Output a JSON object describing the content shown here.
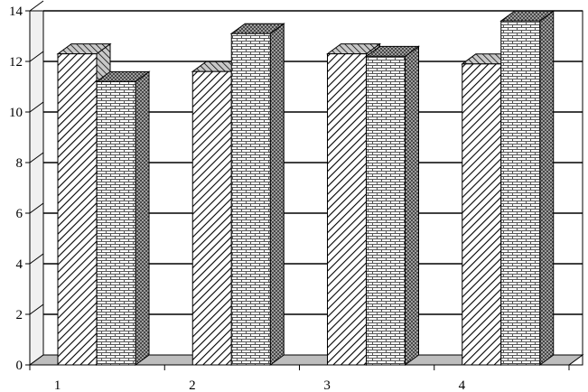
{
  "chart_data": {
    "type": "bar",
    "style": "3d-clustered-column",
    "categories": [
      "1",
      "2",
      "3",
      "4"
    ],
    "series": [
      {
        "values": [
          12.3,
          11.6,
          12.3,
          11.9
        ],
        "pattern": "diagonal-hatch"
      },
      {
        "values": [
          11.2,
          13.1,
          12.2,
          13.6
        ],
        "pattern": "brick"
      }
    ],
    "y_ticks": [
      "0",
      "2",
      "4",
      "6",
      "8",
      "10",
      "12",
      "14"
    ],
    "ylim": [
      0,
      14
    ],
    "grid": true,
    "legend": "none",
    "colors": {
      "bar_face": "#ffffff",
      "hatch": "#000000",
      "wall": "#ffffff",
      "floor": "#bdbdbd",
      "side": "#9a9a9a",
      "top": "#c8c8c8"
    }
  }
}
